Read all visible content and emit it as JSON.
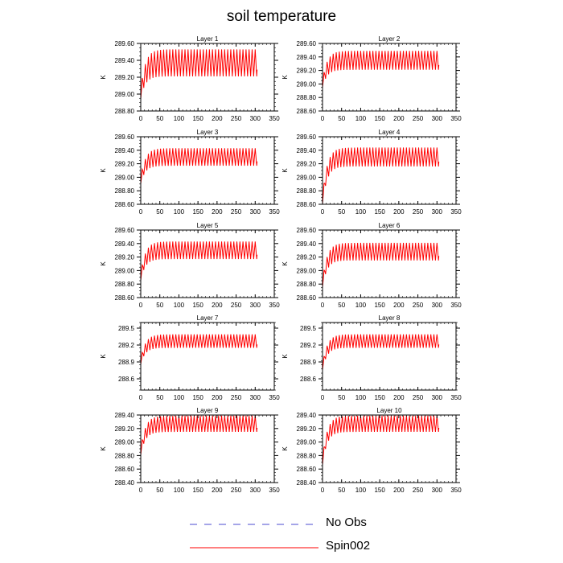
{
  "title": "soil temperature",
  "legend": {
    "items": [
      {
        "label": "No Obs",
        "color": "#4b4bd2",
        "style": "dashed"
      },
      {
        "label": "Spin002",
        "color": "#ff0000",
        "style": "solid"
      }
    ]
  },
  "chart_data": [
    {
      "type": "line",
      "title": "Layer 1",
      "ylabel": "K",
      "xlim": [
        0,
        350
      ],
      "xticks": [
        "0",
        "50",
        "100",
        "150",
        "200",
        "250",
        "300",
        "350"
      ],
      "ylim": [
        288.8,
        289.6
      ],
      "yticks": [
        "288.80",
        "289.00",
        "289.20",
        "289.40",
        "289.60"
      ],
      "series": [
        {
          "name": "Spin002",
          "color": "#ff0000",
          "x_range": [
            0,
            305
          ],
          "start": 289.0,
          "settle_mean": 289.37,
          "settle_amplitude": 0.16,
          "oscillation_period": 8
        }
      ]
    },
    {
      "type": "line",
      "title": "Layer 2",
      "ylabel": "K",
      "xlim": [
        0,
        350
      ],
      "xticks": [
        "0",
        "50",
        "100",
        "150",
        "200",
        "250",
        "300",
        "350"
      ],
      "ylim": [
        288.6,
        289.6
      ],
      "yticks": [
        "288.60",
        "288.80",
        "289.00",
        "289.20",
        "289.40",
        "289.60"
      ],
      "series": [
        {
          "name": "Spin002",
          "color": "#ff0000",
          "x_range": [
            0,
            305
          ],
          "start": 289.0,
          "settle_mean": 289.35,
          "settle_amplitude": 0.14,
          "oscillation_period": 8
        }
      ]
    },
    {
      "type": "line",
      "title": "Layer 3",
      "ylabel": "K",
      "xlim": [
        0,
        350
      ],
      "xticks": [
        "0",
        "50",
        "100",
        "150",
        "200",
        "250",
        "300",
        "350"
      ],
      "ylim": [
        288.6,
        289.6
      ],
      "yticks": [
        "288.60",
        "288.80",
        "289.00",
        "289.20",
        "289.40",
        "289.60"
      ],
      "series": [
        {
          "name": "Spin002",
          "color": "#ff0000",
          "x_range": [
            0,
            305
          ],
          "start": 288.95,
          "settle_mean": 289.3,
          "settle_amplitude": 0.13,
          "oscillation_period": 8
        }
      ]
    },
    {
      "type": "line",
      "title": "Layer 4",
      "ylabel": "K",
      "xlim": [
        0,
        350
      ],
      "xticks": [
        "0",
        "50",
        "100",
        "150",
        "200",
        "250",
        "300",
        "350"
      ],
      "ylim": [
        288.6,
        289.6
      ],
      "yticks": [
        "288.60",
        "288.80",
        "289.00",
        "289.20",
        "289.40",
        "289.60"
      ],
      "series": [
        {
          "name": "Spin002",
          "color": "#ff0000",
          "x_range": [
            0,
            305
          ],
          "start": 288.65,
          "settle_mean": 289.3,
          "settle_amplitude": 0.14,
          "oscillation_period": 8
        }
      ]
    },
    {
      "type": "line",
      "title": "Layer 5",
      "ylabel": "K",
      "xlim": [
        0,
        350
      ],
      "xticks": [
        "0",
        "50",
        "100",
        "150",
        "200",
        "250",
        "300",
        "350"
      ],
      "ylim": [
        288.6,
        289.6
      ],
      "yticks": [
        "288.60",
        "288.80",
        "289.00",
        "289.20",
        "289.40",
        "289.60"
      ],
      "series": [
        {
          "name": "Spin002",
          "color": "#ff0000",
          "x_range": [
            0,
            305
          ],
          "start": 288.9,
          "settle_mean": 289.3,
          "settle_amplitude": 0.13,
          "oscillation_period": 8
        }
      ]
    },
    {
      "type": "line",
      "title": "Layer 6",
      "ylabel": "K",
      "xlim": [
        0,
        350
      ],
      "xticks": [
        "0",
        "50",
        "100",
        "150",
        "200",
        "250",
        "300",
        "350"
      ],
      "ylim": [
        288.6,
        289.6
      ],
      "yticks": [
        "288.60",
        "288.80",
        "289.00",
        "289.20",
        "289.40",
        "289.60"
      ],
      "series": [
        {
          "name": "Spin002",
          "color": "#ff0000",
          "x_range": [
            0,
            305
          ],
          "start": 288.8,
          "settle_mean": 289.28,
          "settle_amplitude": 0.13,
          "oscillation_period": 8
        }
      ]
    },
    {
      "type": "line",
      "title": "Layer 7",
      "ylabel": "K",
      "xlim": [
        0,
        350
      ],
      "xticks": [
        "0",
        "50",
        "100",
        "150",
        "200",
        "250",
        "300",
        "350"
      ],
      "ylim": [
        288.4,
        289.6
      ],
      "yticks": [
        "288.6",
        "288.9",
        "289.2",
        "289.5"
      ],
      "series": [
        {
          "name": "Spin002",
          "color": "#ff0000",
          "x_range": [
            0,
            305
          ],
          "start": 288.9,
          "settle_mean": 289.27,
          "settle_amplitude": 0.12,
          "oscillation_period": 8
        }
      ]
    },
    {
      "type": "line",
      "title": "Layer 8",
      "ylabel": "K",
      "xlim": [
        0,
        350
      ],
      "xticks": [
        "0",
        "50",
        "100",
        "150",
        "200",
        "250",
        "300",
        "350"
      ],
      "ylim": [
        288.4,
        289.6
      ],
      "yticks": [
        "288.6",
        "288.9",
        "289.2",
        "289.5"
      ],
      "series": [
        {
          "name": "Spin002",
          "color": "#ff0000",
          "x_range": [
            0,
            305
          ],
          "start": 288.8,
          "settle_mean": 289.27,
          "settle_amplitude": 0.12,
          "oscillation_period": 8
        }
      ]
    },
    {
      "type": "line",
      "title": "Layer 9",
      "ylabel": "K",
      "xlim": [
        0,
        350
      ],
      "xticks": [
        "0",
        "50",
        "100",
        "150",
        "200",
        "250",
        "300",
        "350"
      ],
      "ylim": [
        288.4,
        289.4
      ],
      "yticks": [
        "288.40",
        "288.60",
        "288.80",
        "289.00",
        "289.20",
        "289.40"
      ],
      "series": [
        {
          "name": "Spin002",
          "color": "#ff0000",
          "x_range": [
            0,
            305
          ],
          "start": 288.85,
          "settle_mean": 289.27,
          "settle_amplitude": 0.12,
          "oscillation_period": 8
        }
      ]
    },
    {
      "type": "line",
      "title": "Layer 10",
      "ylabel": "K",
      "xlim": [
        0,
        350
      ],
      "xticks": [
        "0",
        "50",
        "100",
        "150",
        "200",
        "250",
        "300",
        "350"
      ],
      "ylim": [
        288.4,
        289.4
      ],
      "yticks": [
        "288.40",
        "288.60",
        "288.80",
        "289.00",
        "289.20",
        "289.40"
      ],
      "series": [
        {
          "name": "Spin002",
          "color": "#ff0000",
          "x_range": [
            0,
            305
          ],
          "start": 288.7,
          "settle_mean": 289.27,
          "settle_amplitude": 0.12,
          "oscillation_period": 8
        }
      ]
    }
  ]
}
